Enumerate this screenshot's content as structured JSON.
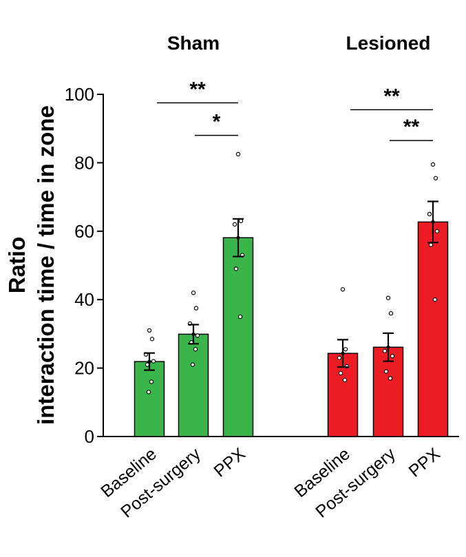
{
  "chart_data": {
    "type": "bar",
    "ylabel_line1": "Ratio",
    "ylabel_line2": "interaction time / time in zone",
    "ylim": [
      0,
      100
    ],
    "yticks": [
      0,
      20,
      40,
      60,
      80,
      100
    ],
    "ytick_labels": [
      "0",
      "20",
      "40",
      "60",
      "80",
      "100"
    ],
    "categories": [
      "Baseline",
      "Post-surgery",
      "PPX"
    ],
    "groups": [
      {
        "name": "Sham",
        "color": "#39b54a",
        "means": [
          21.9,
          29.9,
          58.1
        ],
        "sem": [
          2.5,
          2.8,
          5.5
        ],
        "points": [
          [
            31,
            28.5,
            24,
            22,
            21,
            16,
            13
          ],
          [
            42,
            37.5,
            33,
            29.5,
            27.5,
            25.5,
            21
          ],
          [
            82.5,
            63,
            62,
            53,
            49,
            35
          ]
        ]
      },
      {
        "name": "Lesioned",
        "color": "#ed1c24",
        "means": [
          24.3,
          26.1,
          62.7
        ],
        "sem": [
          4.0,
          4.1,
          6.0
        ],
        "points": [
          [
            43,
            25.5,
            23,
            20.5,
            18.5,
            16.5
          ],
          [
            40.5,
            36,
            25,
            23.5,
            19,
            17
          ],
          [
            79.5,
            75.5,
            65,
            60,
            56,
            40
          ]
        ]
      }
    ],
    "significance": [
      {
        "group": 0,
        "from": 0,
        "to": 2,
        "y": 97.5,
        "label": "**"
      },
      {
        "group": 0,
        "from": 1,
        "to": 2,
        "y": 88,
        "label": "*"
      },
      {
        "group": 1,
        "from": 0,
        "to": 2,
        "y": 95.5,
        "label": "**"
      },
      {
        "group": 1,
        "from": 1,
        "to": 2,
        "y": 86.5,
        "label": "**"
      }
    ]
  }
}
